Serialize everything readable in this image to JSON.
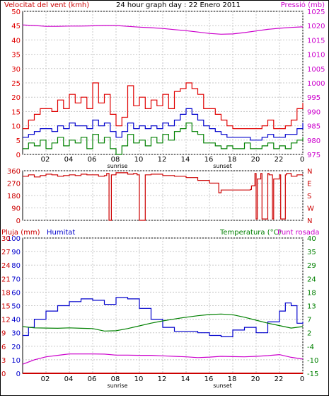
{
  "header": {
    "wind_label": "Velocitat del vent (kmh)",
    "title": "24 hour graph day : 22 Enero 2011",
    "pressure_label": "Pressió (mb)"
  },
  "bottom_header": {
    "rain_label": "Pluja (mm)",
    "humidity_label": "Humitat",
    "temp_label": "Temperatura (°C)",
    "dew_label": "Punt rosada"
  },
  "x_axis": {
    "ticks": [
      {
        "h": 2,
        "label": "02"
      },
      {
        "h": 4,
        "label": "04"
      },
      {
        "h": 6,
        "label": "06"
      },
      {
        "h": 8,
        "label": "08"
      },
      {
        "h": 10,
        "label": "10"
      },
      {
        "h": 12,
        "label": "12"
      },
      {
        "h": 14,
        "label": "14"
      },
      {
        "h": 16,
        "label": "16"
      },
      {
        "h": 18,
        "label": "18"
      },
      {
        "h": 20,
        "label": "20"
      },
      {
        "h": 22,
        "label": "22"
      },
      {
        "h": 24,
        "label": "0"
      }
    ],
    "sunrise_label": "sunrise",
    "sunrise_h": 8,
    "sunset_label": "sunset",
    "sunset_h": 17
  },
  "colors": {
    "wind_max": "#e00000",
    "wind_avg": "#0000cc",
    "wind_min": "#008000",
    "pressure": "#cc00cc",
    "direction": "#cc0000",
    "rain": "#cc0000",
    "humidity": "#0000cc",
    "temperature": "#008000",
    "dew": "#cc00cc",
    "grid": "#c8c8c8",
    "frame": "#000000"
  },
  "chart_data": [
    {
      "type": "line",
      "title": "24 hour graph day : 22 Enero 2011",
      "x_range": [
        0,
        24
      ],
      "left_axis": {
        "label": "Velocitat del vent (kmh)",
        "ticks": [
          0,
          5,
          10,
          15,
          20,
          25,
          30,
          35,
          40,
          45,
          50
        ],
        "ylim": [
          0,
          50
        ]
      },
      "right_axis": {
        "label": "Pressió (mb)",
        "ticks": [
          975,
          980,
          985,
          990,
          995,
          1000,
          1005,
          1010,
          1015,
          1020,
          1025
        ],
        "ylim": [
          972.5,
          1025
        ]
      },
      "series": [
        {
          "name": "max",
          "axis": "left",
          "color": "#e00000",
          "x": [
            0,
            0.5,
            1,
            1.5,
            2,
            2.5,
            3,
            3.5,
            4,
            4.5,
            5,
            5.5,
            6,
            6.5,
            7,
            7.5,
            8,
            8.5,
            9,
            9.5,
            10,
            10.5,
            11,
            11.5,
            12,
            12.5,
            13,
            13.5,
            14,
            14.5,
            15,
            15.5,
            16,
            16.5,
            17,
            17.5,
            18,
            18.5,
            19,
            19.5,
            20,
            20.5,
            21,
            21.5,
            22,
            22.5,
            23,
            23.5,
            24
          ],
          "y": [
            9,
            12,
            14,
            16,
            16,
            15,
            19,
            16,
            21,
            18,
            20,
            16,
            25,
            18,
            21,
            14,
            10,
            13,
            24,
            17,
            20,
            16,
            19,
            17,
            21,
            16,
            22,
            23,
            25,
            23,
            21,
            16,
            16,
            14,
            12,
            10,
            9,
            9,
            9,
            9,
            9,
            10,
            12,
            9,
            9,
            10,
            12,
            16,
            18
          ]
        },
        {
          "name": "avg",
          "axis": "left",
          "color": "#0000cc",
          "x": [
            0,
            0.5,
            1,
            1.5,
            2,
            2.5,
            3,
            3.5,
            4,
            4.5,
            5,
            5.5,
            6,
            6.5,
            7,
            7.5,
            8,
            8.5,
            9,
            9.5,
            10,
            10.5,
            11,
            11.5,
            12,
            12.5,
            13,
            13.5,
            14,
            14.5,
            15,
            15.5,
            16,
            16.5,
            17,
            17.5,
            18,
            18.5,
            19,
            19.5,
            20,
            20.5,
            21,
            21.5,
            22,
            22.5,
            23,
            23.5,
            24
          ],
          "y": [
            6,
            7,
            8,
            9,
            9,
            8,
            10,
            9,
            11,
            10,
            10,
            9,
            12,
            10,
            11,
            8,
            6,
            8,
            11,
            9,
            10,
            9,
            10,
            9,
            11,
            10,
            12,
            14,
            16,
            14,
            12,
            10,
            9,
            8,
            7,
            6,
            6,
            6,
            6,
            5,
            5,
            6,
            7,
            6,
            6,
            7,
            7,
            9,
            11
          ]
        },
        {
          "name": "min",
          "axis": "left",
          "color": "#008000",
          "x": [
            0,
            0.5,
            1,
            1.5,
            2,
            2.5,
            3,
            3.5,
            4,
            4.5,
            5,
            5.5,
            6,
            6.5,
            7,
            7.5,
            8,
            8.5,
            9,
            9.5,
            10,
            10.5,
            11,
            11.5,
            12,
            12.5,
            13,
            13.5,
            14,
            14.5,
            15,
            15.5,
            16,
            16.5,
            17,
            17.5,
            18,
            18.5,
            19,
            19.5,
            20,
            20.5,
            21,
            21.5,
            22,
            22.5,
            23,
            23.5,
            24
          ],
          "y": [
            2,
            4,
            3,
            5,
            2,
            4,
            6,
            3,
            5,
            4,
            6,
            2,
            7,
            4,
            6,
            2,
            0,
            3,
            7,
            4,
            5,
            3,
            6,
            4,
            7,
            5,
            8,
            9,
            11,
            8,
            7,
            4,
            4,
            3,
            2,
            3,
            2,
            2,
            4,
            2,
            2,
            3,
            4,
            2,
            3,
            2,
            4,
            5,
            6
          ]
        },
        {
          "name": "pressure",
          "axis": "right",
          "color": "#cc00cc",
          "x": [
            0,
            1,
            2,
            3,
            4,
            5,
            6,
            7,
            8,
            9,
            10,
            11,
            12,
            13,
            14,
            15,
            16,
            17,
            18,
            19,
            20,
            21,
            22,
            23,
            24
          ],
          "y": [
            1020,
            1019.8,
            1019.5,
            1019.5,
            1019.6,
            1019.6,
            1019.7,
            1019.8,
            1019.8,
            1019.5,
            1019.2,
            1019,
            1018.7,
            1018.3,
            1017.9,
            1017.4,
            1016.9,
            1016.6,
            1016.7,
            1017.2,
            1017.8,
            1018.4,
            1018.8,
            1019.1,
            1019.3
          ]
        }
      ]
    },
    {
      "type": "line",
      "title": "",
      "x_range": [
        0,
        24
      ],
      "left_axis": {
        "ticks": [
          0,
          90,
          180,
          270,
          360
        ],
        "ylim": [
          0,
          360
        ]
      },
      "right_axis": {
        "ticks": [
          "N",
          "W",
          "S",
          "E",
          "N"
        ]
      },
      "series": [
        {
          "name": "direction",
          "color": "#cc0000",
          "x": [
            0,
            0.5,
            1,
            1.5,
            2,
            2.5,
            3,
            3.5,
            4,
            4.5,
            5,
            5.5,
            6,
            6.5,
            7,
            7.2,
            7.4,
            7.6,
            8,
            9,
            9.5,
            9.8,
            10,
            10.5,
            11,
            12,
            13,
            14,
            15,
            16,
            16.8,
            17,
            18,
            19,
            19.5,
            19.6,
            19.9,
            20,
            20.1,
            20.4,
            20.5,
            21,
            21.1,
            21.4,
            21.5,
            22,
            22.1,
            22.5,
            22.6,
            23,
            23.5,
            24
          ],
          "y": [
            320,
            330,
            315,
            325,
            335,
            330,
            320,
            325,
            330,
            325,
            335,
            330,
            330,
            320,
            325,
            340,
            0,
            330,
            345,
            335,
            340,
            330,
            0,
            330,
            335,
            325,
            320,
            310,
            290,
            270,
            200,
            220,
            220,
            220,
            225,
            250,
            340,
            10,
            300,
            340,
            10,
            340,
            330,
            10,
            300,
            330,
            10,
            330,
            340,
            320,
            330,
            330
          ]
        }
      ]
    },
    {
      "type": "line",
      "title": "",
      "x_range": [
        0,
        24
      ],
      "left_axis": {
        "label": "Humitat",
        "ticks": [
          0,
          10,
          20,
          30,
          40,
          50,
          60,
          70,
          80,
          90,
          100
        ],
        "ylim": [
          0,
          100
        ]
      },
      "rain_axis": {
        "label": "Pluja (mm)",
        "ticks": [
          0,
          3,
          6,
          9,
          12,
          15,
          18,
          21,
          24,
          27,
          30
        ],
        "ylim": [
          0,
          30
        ]
      },
      "right_axis": {
        "label": "Temperatura (°C)",
        "ticks": [
          -15,
          -10,
          -4,
          2,
          7,
          13,
          18,
          24,
          29,
          35,
          40
        ],
        "ylim": [
          -15,
          40
        ]
      },
      "series": [
        {
          "name": "Humitat",
          "axis": "left",
          "color": "#0000cc",
          "x": [
            0,
            0.5,
            1,
            2,
            3,
            4,
            5,
            6,
            7,
            8,
            9,
            10,
            11,
            12,
            13,
            14,
            15,
            16,
            17,
            18,
            19,
            20,
            21,
            22,
            22.5,
            23,
            23.5,
            24
          ],
          "y": [
            28,
            34,
            40,
            46,
            50,
            53,
            55,
            54,
            51,
            56,
            55,
            48,
            40,
            34,
            31,
            31,
            30,
            28,
            27,
            32,
            34,
            30,
            38,
            46,
            52,
            50,
            37,
            38
          ]
        },
        {
          "name": "Temperatura",
          "axis": "right",
          "color": "#008000",
          "x": [
            0,
            1,
            2,
            3,
            4,
            5,
            6,
            7,
            8,
            9,
            10,
            11,
            12,
            13,
            14,
            15,
            16,
            17,
            18,
            19,
            20,
            21,
            22,
            23,
            24
          ],
          "y": [
            4,
            3.5,
            3.4,
            3.3,
            3.5,
            3.3,
            3.2,
            2.2,
            2.3,
            3.2,
            4.3,
            5.4,
            6.3,
            7.1,
            7.8,
            8.4,
            8.9,
            9.1,
            8.8,
            7.8,
            6.6,
            5.4,
            4.4,
            3.4,
            4.0
          ]
        },
        {
          "name": "Punt rosada",
          "axis": "right",
          "color": "#cc00cc",
          "x": [
            0,
            1,
            2,
            3,
            4,
            5,
            6,
            7,
            8,
            9,
            10,
            11,
            12,
            13,
            14,
            15,
            16,
            17,
            18,
            19,
            20,
            21,
            22,
            23,
            24
          ],
          "y": [
            -11.3,
            -9.5,
            -8.3,
            -7.7,
            -7.1,
            -7.1,
            -7.1,
            -7.2,
            -7.6,
            -7.6,
            -7.7,
            -7.7,
            -7.9,
            -8.1,
            -8.3,
            -8.6,
            -8.4,
            -8.1,
            -8.2,
            -8.3,
            -8.1,
            -7.8,
            -7.4,
            -8.5,
            -9.2
          ]
        },
        {
          "name": "Pluja",
          "axis": "rain",
          "color": "#cc0000",
          "x": [
            0,
            24
          ],
          "y": [
            0,
            0
          ]
        }
      ]
    }
  ]
}
